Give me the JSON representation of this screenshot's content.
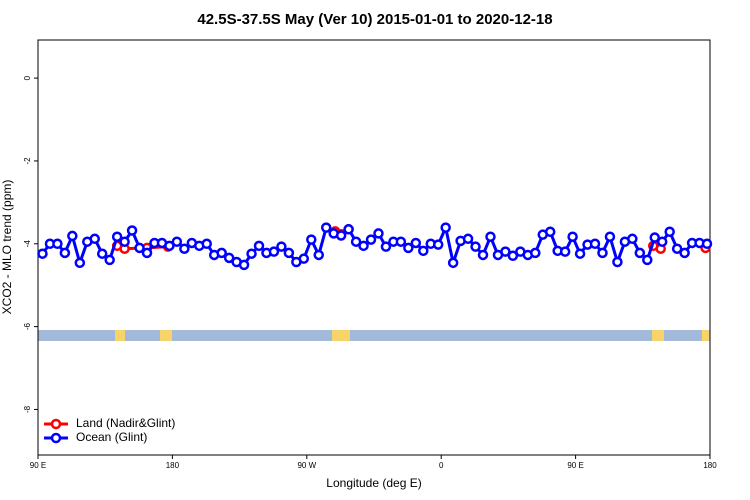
{
  "chart_data": {
    "type": "line",
    "title": "42.5S-37.5S May (Ver 10)   2015-01-01 to 2020-12-18",
    "x_label": "Longitude (deg E)",
    "y_label": "XCO2 - MLO trend (ppm)",
    "xlim": [
      90,
      540
    ],
    "xticks": [
      {
        "value": 90,
        "label": "90 E"
      },
      180,
      {
        "value": 270,
        "label": "90 W"
      },
      {
        "value": 360,
        "label": "0"
      },
      {
        "value": 450,
        "label": "90 E"
      },
      {
        "value": 540,
        "label": "180"
      }
    ],
    "ylim": [
      -9.1,
      0.92
    ],
    "yticks": [
      0,
      -2,
      -4,
      -6,
      -8
    ],
    "legend": "bottom-left",
    "series": [
      {
        "name": "Land (Nadir&Glint)",
        "color": "#ff0000",
        "x": [
          143,
          148,
          163,
          177,
          null,
          289,
          293,
          298,
          null,
          502,
          507,
          null,
          537
        ],
        "values": [
          -4.05,
          -4.12,
          -4.1,
          -4.07,
          null,
          -3.7,
          -3.77,
          -3.65,
          null,
          -4.05,
          -4.12,
          null,
          -4.1
        ]
      },
      {
        "name": "Ocean (Glint)",
        "color": "#0000ff",
        "x": [
          93,
          98,
          103,
          108,
          113,
          118,
          123,
          128,
          133,
          138,
          143,
          148,
          153,
          158,
          163,
          168,
          173,
          178,
          183,
          188,
          193,
          198,
          203,
          208,
          213,
          218,
          223,
          228,
          233,
          238,
          243,
          248,
          253,
          258,
          263,
          268,
          273,
          278,
          283,
          288,
          293,
          298,
          303,
          308,
          313,
          318,
          323,
          328,
          333,
          338,
          343,
          348,
          353,
          358,
          363,
          368,
          373,
          378,
          383,
          388,
          393,
          398,
          403,
          408,
          413,
          418,
          423,
          428,
          433,
          438,
          443,
          448,
          453,
          458,
          463,
          468,
          473,
          478,
          483,
          488,
          493,
          498,
          503,
          508,
          513,
          518,
          523,
          528,
          533,
          538
        ],
        "values": [
          -4.24,
          -4.0,
          -4.0,
          -4.22,
          -3.81,
          -4.46,
          -3.95,
          -3.88,
          -4.24,
          -4.39,
          -3.83,
          -3.95,
          -3.68,
          -4.1,
          -4.22,
          -3.98,
          -3.98,
          -4.05,
          -3.95,
          -4.12,
          -3.98,
          -4.05,
          -4.0,
          -4.27,
          -4.22,
          -4.34,
          -4.44,
          -4.51,
          -4.24,
          -4.05,
          -4.22,
          -4.19,
          -4.07,
          -4.22,
          -4.44,
          -4.36,
          -3.9,
          -4.27,
          -3.61,
          -3.75,
          -3.8,
          -3.65,
          -3.95,
          -4.05,
          -3.9,
          -3.75,
          -4.07,
          -3.95,
          -3.95,
          -4.1,
          -3.98,
          -4.17,
          -4.0,
          -4.02,
          -3.61,
          -4.46,
          -3.93,
          -3.88,
          -4.07,
          -4.27,
          -3.83,
          -4.27,
          -4.19,
          -4.29,
          -4.19,
          -4.27,
          -4.22,
          -3.78,
          -3.71,
          -4.17,
          -4.19,
          -3.83,
          -4.24,
          -4.02,
          -4.0,
          -4.22,
          -3.83,
          -4.44,
          -3.95,
          -3.88,
          -4.22,
          -4.39,
          -3.85,
          -3.95,
          -3.71,
          -4.12,
          -4.22,
          -3.98,
          -3.98,
          -4.0
        ]
      }
    ]
  }
}
